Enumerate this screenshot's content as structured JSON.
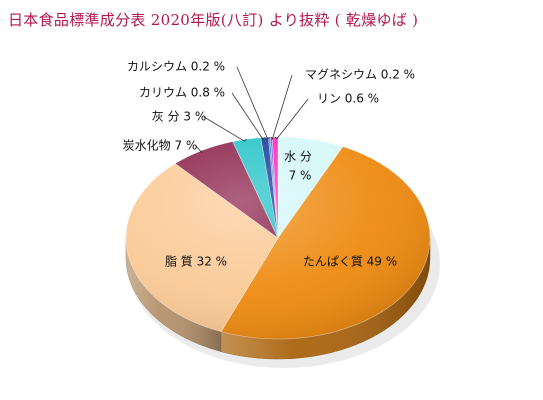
{
  "chart_data": {
    "type": "pie",
    "title": "日本食品標準成分表 2020年版(八訂) より抜粋 ( 乾燥ゆば )",
    "slices": [
      {
        "name": "水 分",
        "value": 7,
        "label": "水 分",
        "pct": "7 %",
        "color": "#d4f7fa"
      },
      {
        "name": "たんぱく質",
        "value": 49,
        "label": "たんぱく質 49 %",
        "color": "#ee8a10"
      },
      {
        "name": "脂 質",
        "value": 32,
        "label": "脂 質 32 %",
        "color": "#fbc995"
      },
      {
        "name": "炭水化物",
        "value": 7,
        "label": "炭水化物 7 %",
        "color": "#8a1f48"
      },
      {
        "name": "灰 分",
        "value": 3,
        "label": "灰 分 3 %",
        "color": "#22c2c6"
      },
      {
        "name": "カリウム",
        "value": 0.8,
        "label": "カリウム 0.8 %",
        "color": "#163a9a"
      },
      {
        "name": "カルシウム",
        "value": 0.2,
        "label": "カルシウム 0.2 %",
        "color": "#3e7fd0"
      },
      {
        "name": "マグネシウム",
        "value": 0.2,
        "label": "マグネシウム 0.2 %",
        "color": "#8a4bd6"
      },
      {
        "name": "リン",
        "value": 0.6,
        "label": "リン 0.6 %",
        "color": "#ff22c8"
      }
    ]
  }
}
